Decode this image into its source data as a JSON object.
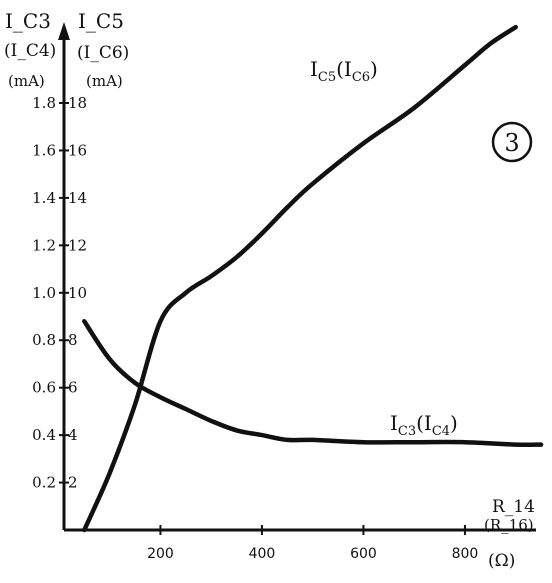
{
  "chart_data": {
    "type": "line",
    "y_left_label": [
      "I_C3",
      "(I_C4)",
      "(mA)"
    ],
    "y_right_label": [
      "I_C5",
      "(I_C6)",
      "(mA)"
    ],
    "x_label": [
      "R_14",
      "(R_16)",
      "(Ω)"
    ],
    "badge": "3",
    "x_ticks": [
      200,
      400,
      600,
      800
    ],
    "y_left_ticks": [
      "0.2",
      "0.4",
      "0.6",
      "0.8",
      "1.0",
      "1.2",
      "1.4",
      "1.6",
      "1.8"
    ],
    "y_right_ticks": [
      "2",
      "4",
      "6",
      "8",
      "10",
      "12",
      "14",
      "16",
      "18"
    ],
    "xlim": [
      10,
      940
    ],
    "ylim_left": [
      0,
      2.15
    ],
    "ylim_right": [
      0,
      21.5
    ],
    "series": [
      {
        "name": "I_C5(I_C6)",
        "axis": "right",
        "x": [
          50,
          100,
          150,
          200,
          250,
          300,
          350,
          400,
          450,
          500,
          600,
          700,
          800,
          850,
          900
        ],
        "y": [
          0,
          2.4,
          5.3,
          8.8,
          10.0,
          10.7,
          11.5,
          12.5,
          13.6,
          14.6,
          16.3,
          17.8,
          19.6,
          20.5,
          21.2
        ]
      },
      {
        "name": "I_C3(I_C4)",
        "axis": "left",
        "x": [
          50,
          100,
          150,
          200,
          250,
          300,
          350,
          400,
          450,
          500,
          600,
          700,
          800,
          900,
          950
        ],
        "y": [
          0.88,
          0.72,
          0.62,
          0.56,
          0.51,
          0.46,
          0.42,
          0.4,
          0.38,
          0.38,
          0.37,
          0.37,
          0.37,
          0.36,
          0.36
        ]
      }
    ],
    "series_labels": [
      {
        "main": "I",
        "sub": "C5",
        "mid": "(I",
        "sub2": "C6",
        "end": ")"
      },
      {
        "main": "I",
        "sub": "C3",
        "mid": "(I",
        "sub2": "C4",
        "end": ")"
      }
    ]
  }
}
